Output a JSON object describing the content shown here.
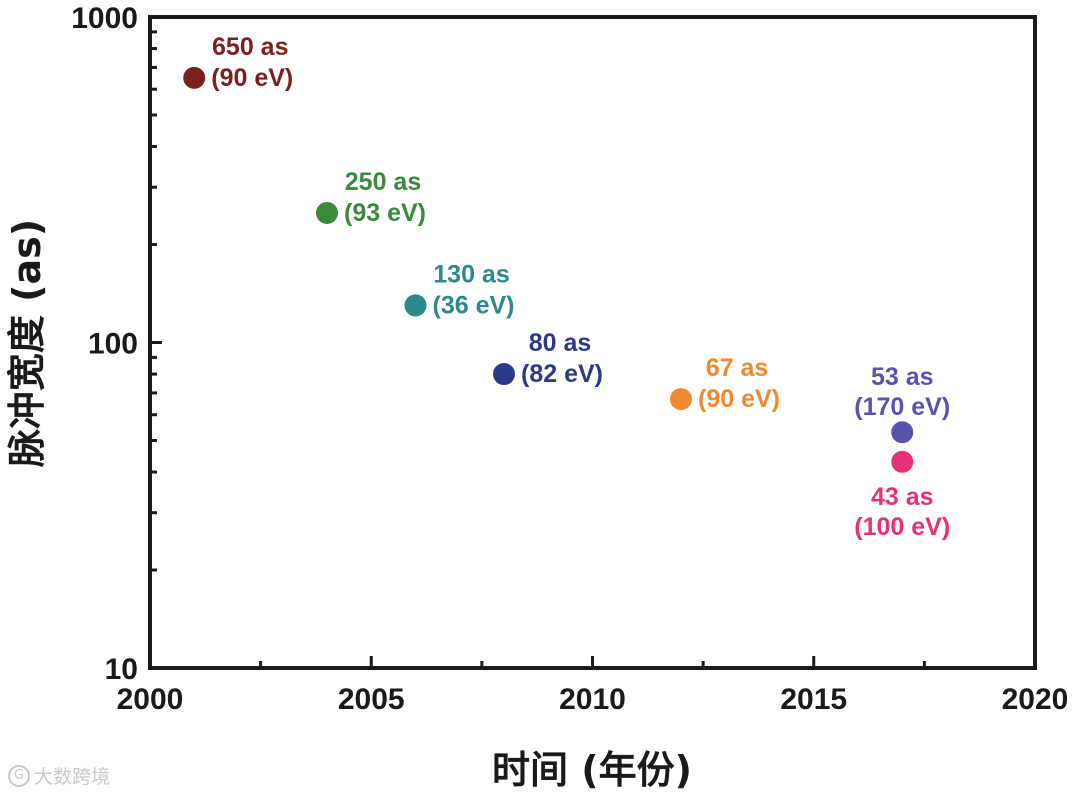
{
  "chart_data": {
    "type": "scatter",
    "title": "",
    "xlabel": "时间 (年份)",
    "ylabel": "脉冲宽度 (as)",
    "xlim": [
      2000,
      2020
    ],
    "ylim": [
      10,
      1000
    ],
    "yscale": "log",
    "x_ticks": [
      2000,
      2005,
      2010,
      2015,
      2020
    ],
    "x_tick_labels": [
      "2000",
      "2005",
      "2010",
      "2015",
      "2020"
    ],
    "y_ticks": [
      10,
      100,
      1000
    ],
    "y_tick_labels": [
      "10",
      "100",
      "1000"
    ],
    "grid": false,
    "points": [
      {
        "x": 2001,
        "y": 650,
        "color": "#7b1f1f",
        "label1": "650 as",
        "label2": "(90 eV)",
        "label_pos": "upper-right"
      },
      {
        "x": 2004,
        "y": 250,
        "color": "#3a8a3e",
        "label1": "250 as",
        "label2": "(93 eV)",
        "label_pos": "upper-right"
      },
      {
        "x": 2006,
        "y": 130,
        "color": "#2a8a8a",
        "label1": "130 as",
        "label2": "(36 eV)",
        "label_pos": "upper-right"
      },
      {
        "x": 2008,
        "y": 80,
        "color": "#2a3a8a",
        "label1": "80 as",
        "label2": "(82 eV)",
        "label_pos": "upper-right"
      },
      {
        "x": 2012,
        "y": 67,
        "color": "#f08a30",
        "label1": "67 as",
        "label2": "(90 eV)",
        "label_pos": "upper-right"
      },
      {
        "x": 2017,
        "y": 53,
        "color": "#5a52b0",
        "label1": "53 as",
        "label2": "(170 eV)",
        "label_pos": "above"
      },
      {
        "x": 2017,
        "y": 43,
        "color": "#e8307a",
        "label1": "43 as",
        "label2": "(100 eV)",
        "label_pos": "below"
      }
    ]
  },
  "watermark": {
    "logo": "G",
    "text": "大数跨境"
  }
}
